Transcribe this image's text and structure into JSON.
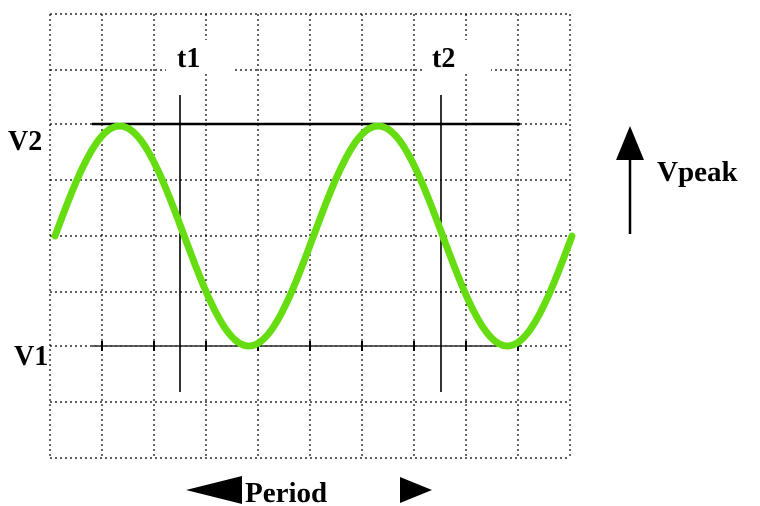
{
  "labels": {
    "v2": "V2",
    "v1": "V1",
    "t1": "t1",
    "t2": "t2",
    "vpeak": "Vpeak",
    "period": "Period"
  },
  "colors": {
    "trace": "#66dd11",
    "grid": "#000000",
    "background": "#ffffff"
  },
  "icons": {
    "vpeak_arrow": "arrow-up-icon",
    "period_left": "arrow-left-icon",
    "period_right": "arrow-right-icon"
  },
  "waveform": {
    "type": "sine",
    "cycles_shown": 2
  }
}
